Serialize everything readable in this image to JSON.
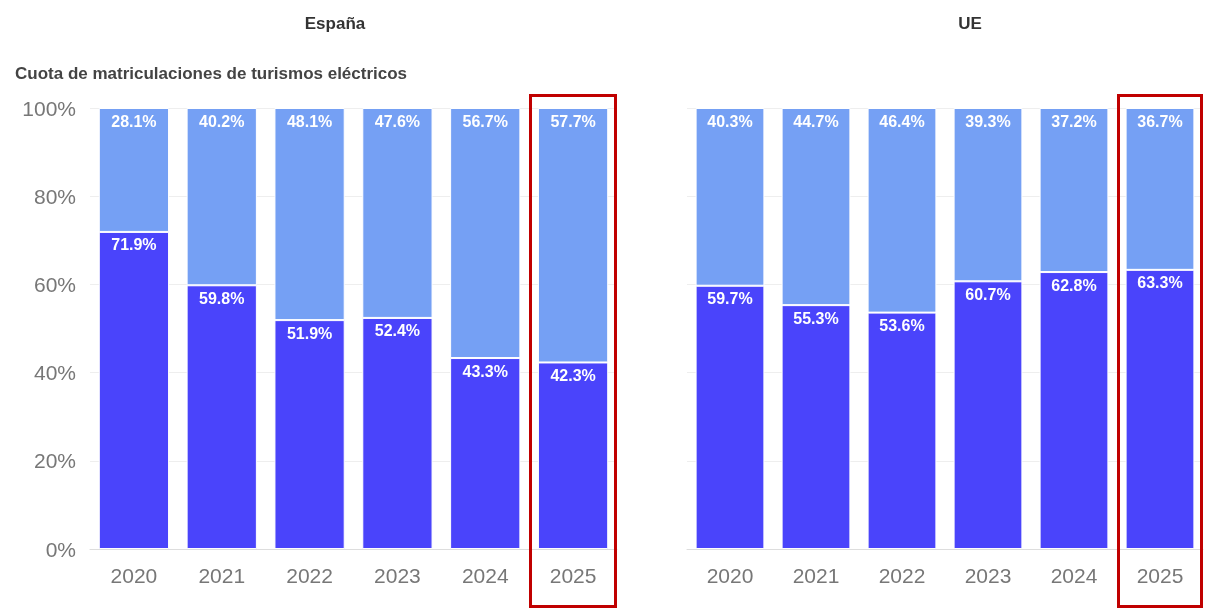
{
  "chart_data": [
    {
      "type": "bar",
      "title": "España",
      "subtitle": "Cuota de matriculaciones de turismos eléctricos",
      "categories": [
        "2020",
        "2021",
        "2022",
        "2023",
        "2024",
        "2025"
      ],
      "stacked": true,
      "grid": "y",
      "ylim": [
        0,
        100
      ],
      "yticks": [
        {
          "value": 0,
          "label": "0%"
        },
        {
          "value": 20,
          "label": "20%"
        },
        {
          "value": 40,
          "label": "40%"
        },
        {
          "value": 60,
          "label": "60%"
        },
        {
          "value": 80,
          "label": "80%"
        },
        {
          "value": 100,
          "label": "100%"
        }
      ],
      "series": [
        {
          "color": "#4a44fb",
          "values": [
            71.9,
            59.8,
            51.9,
            52.4,
            43.3,
            42.3
          ],
          "value_labels": [
            "71.9%",
            "59.8%",
            "51.9%",
            "52.4%",
            "43.3%",
            "42.3%"
          ]
        },
        {
          "color": "#75a0f4",
          "values": [
            28.1,
            40.2,
            48.1,
            47.6,
            56.7,
            57.7
          ],
          "value_labels": [
            "28.1%",
            "40.2%",
            "48.1%",
            "47.6%",
            "56.7%",
            "57.7%"
          ]
        }
      ]
    },
    {
      "type": "bar",
      "title": "UE",
      "categories": [
        "2020",
        "2021",
        "2022",
        "2023",
        "2024",
        "2025"
      ],
      "stacked": true,
      "grid": "y",
      "tick_labels": "x",
      "ylim": [
        0,
        100
      ],
      "yticks": [
        0,
        20,
        40,
        60,
        80,
        100
      ],
      "series": [
        {
          "color": "#4a44fb",
          "values": [
            59.7,
            55.3,
            53.6,
            60.7,
            62.8,
            63.3
          ],
          "value_labels": [
            "59.7%",
            "55.3%",
            "53.6%",
            "60.7%",
            "62.8%",
            "63.3%"
          ]
        },
        {
          "color": "#75a0f4",
          "values": [
            40.3,
            44.7,
            46.4,
            39.3,
            37.2,
            36.7
          ],
          "value_labels": [
            "40.3%",
            "44.7%",
            "46.4%",
            "39.3%",
            "37.2%",
            "36.7%"
          ]
        }
      ]
    }
  ]
}
